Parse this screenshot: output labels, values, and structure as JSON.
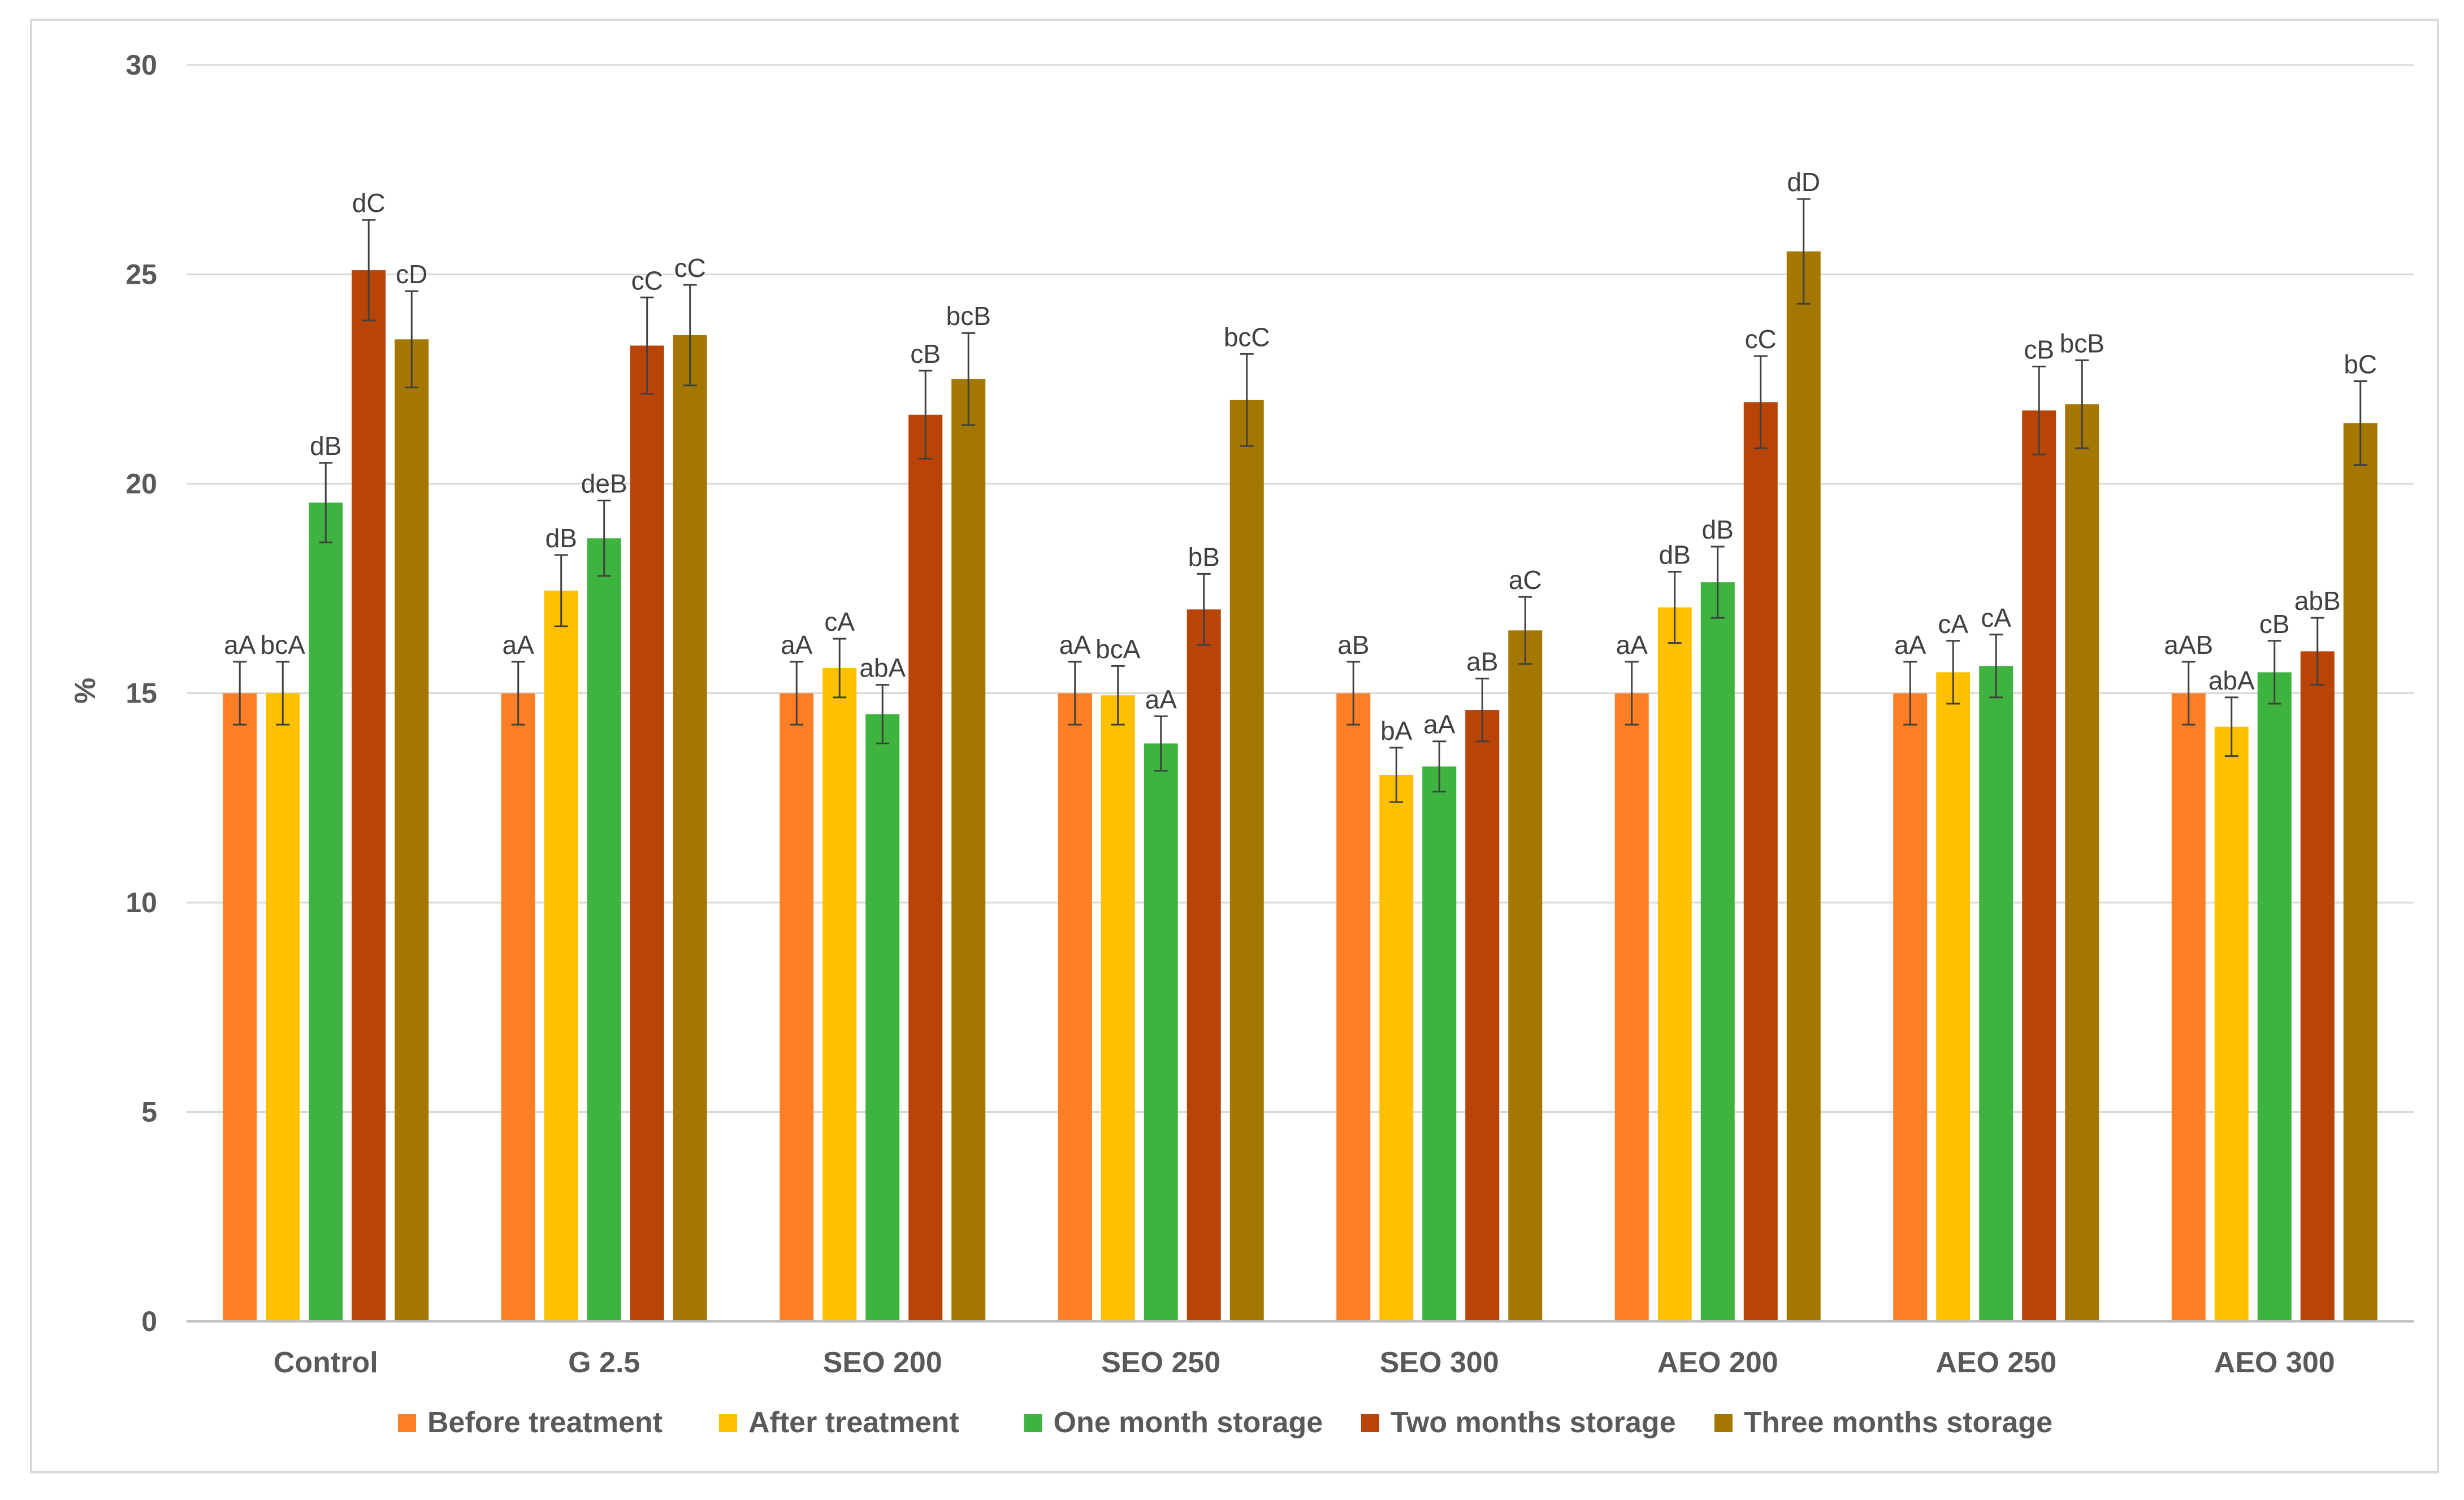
{
  "chart_data": {
    "type": "bar",
    "title": "",
    "xlabel": "",
    "ylabel": "%",
    "ylim": [
      0,
      30
    ],
    "yticks": [
      0,
      5,
      10,
      15,
      20,
      25,
      30
    ],
    "grid": true,
    "legend_position": "bottom",
    "categories": [
      "Control",
      "G 2.5",
      "SEO 200",
      "SEO 250",
      "SEO 300",
      "AEO 200",
      "AEO 250",
      "AEO 300"
    ],
    "series": [
      {
        "name": "Before treatment",
        "color": "#FF7F27",
        "values": [
          15.0,
          15.0,
          15.0,
          15.0,
          15.0,
          15.0,
          15.0,
          15.0
        ],
        "errors": [
          0.75,
          0.75,
          0.75,
          0.75,
          0.75,
          0.75,
          0.75,
          0.75
        ],
        "labels": [
          "aA",
          "aA",
          "aA",
          "aA",
          "aB",
          "aA",
          "aA",
          "aAB"
        ]
      },
      {
        "name": "After treatment",
        "color": "#FFC000",
        "values": [
          15.0,
          17.45,
          15.6,
          14.95,
          13.05,
          17.05,
          15.5,
          14.2
        ],
        "errors": [
          0.75,
          0.85,
          0.7,
          0.7,
          0.65,
          0.85,
          0.75,
          0.7
        ],
        "labels": [
          "bcA",
          "dB",
          "cA",
          "bcA",
          "bA",
          "dB",
          "cA",
          "abA"
        ]
      },
      {
        "name": "One month storage",
        "color": "#3FB33F",
        "values": [
          19.55,
          18.7,
          14.5,
          13.8,
          13.25,
          17.65,
          15.65,
          15.5
        ],
        "errors": [
          0.95,
          0.9,
          0.7,
          0.65,
          0.6,
          0.85,
          0.75,
          0.75
        ],
        "labels": [
          "dB",
          "deB",
          "abA",
          "aA",
          "aA",
          "dB",
          "cA",
          "cB"
        ]
      },
      {
        "name": "Two months storage",
        "color": "#B84407",
        "values": [
          25.1,
          23.3,
          21.65,
          17.0,
          14.6,
          21.95,
          21.75,
          16.0
        ],
        "errors": [
          1.2,
          1.15,
          1.05,
          0.85,
          0.75,
          1.1,
          1.05,
          0.8
        ],
        "labels": [
          "dC",
          "cC",
          "cB",
          "bB",
          "aB",
          "cC",
          "cB",
          "abB"
        ]
      },
      {
        "name": "Three months storage",
        "color": "#A47700",
        "values": [
          23.45,
          23.55,
          22.5,
          22.0,
          16.5,
          25.55,
          21.9,
          21.45
        ],
        "errors": [
          1.15,
          1.2,
          1.1,
          1.1,
          0.8,
          1.25,
          1.05,
          1.0
        ],
        "labels": [
          "cD",
          "cC",
          "bcB",
          "bcC",
          "aC",
          "dD",
          "bcB",
          "bC"
        ]
      }
    ]
  }
}
